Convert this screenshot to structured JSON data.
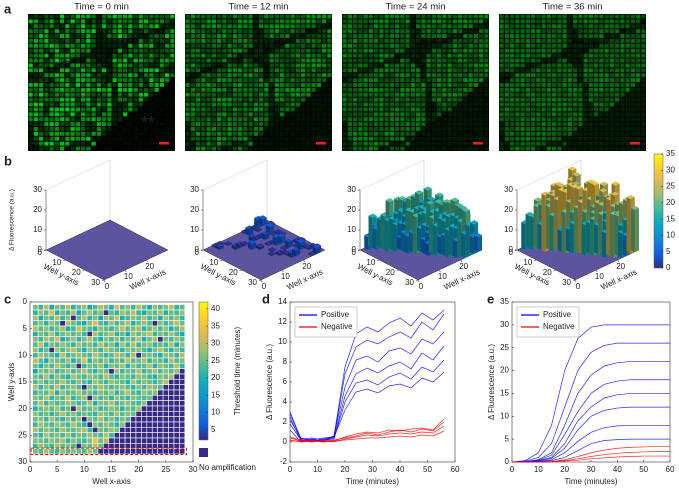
{
  "panel_labels": [
    "a",
    "b",
    "c",
    "d",
    "e"
  ],
  "a": {
    "titles": [
      "Time = 0 min",
      "Time = 12 min",
      "Time = 24 min",
      "Time = 36 min"
    ],
    "annotations": [
      "*",
      "**"
    ]
  },
  "b": {
    "zlabel": "Δ Fluorescence (a.u.)",
    "ylabel": "Well y-axis",
    "xlabel": "Well x-axis",
    "zticks": [
      0,
      10,
      20,
      30
    ],
    "yticks": [
      0,
      10,
      20,
      30
    ],
    "xticks": [
      0,
      10,
      20
    ],
    "colorbar_lim": [
      0,
      35
    ],
    "colorbar_ticks": [
      0,
      5,
      10,
      15,
      20,
      25,
      30,
      35
    ]
  },
  "c": {
    "type": "heatmap",
    "xlabel": "Well x-axis",
    "ylabel": "Well y-axis",
    "xlim": [
      0,
      30
    ],
    "ylim": [
      0,
      30
    ],
    "xticks": [
      0,
      5,
      10,
      15,
      20,
      25,
      30
    ],
    "yticks": [
      0,
      5,
      10,
      15,
      20,
      25,
      30
    ],
    "colorbar_label": "Threshold time (minutes)",
    "colorbar_lim": [
      2,
      42
    ],
    "colorbar_ticks": [
      5,
      10,
      15,
      20,
      25,
      30,
      35,
      40
    ],
    "null_label": "No amplification",
    "values": [
      [
        26,
        22,
        30,
        19,
        27,
        24,
        31,
        21,
        25,
        28,
        18,
        23,
        29,
        26,
        20,
        33,
        24,
        27,
        22,
        30,
        25,
        19,
        28,
        23,
        26,
        31,
        21,
        24
      ],
      [
        21,
        28,
        24,
        33,
        20,
        26,
        22,
        29,
        17,
        25,
        30,
        23,
        27,
        null,
        24,
        21,
        28,
        26,
        31,
        22,
        19,
        27,
        24,
        29,
        20,
        25,
        23,
        28
      ],
      [
        29,
        19,
        26,
        23,
        31,
        22,
        27,
        null,
        24,
        30,
        21,
        26,
        18,
        28,
        25,
        32,
        20,
        23,
        27,
        24,
        29,
        22,
        26,
        19,
        30,
        24,
        27,
        21
      ],
      [
        23,
        27,
        21,
        28,
        24,
        null,
        30,
        25,
        22,
        19,
        27,
        33,
        24,
        21,
        29,
        23,
        26,
        30,
        20,
        25,
        28,
        24,
        null,
        27,
        22,
        26,
        31,
        25
      ],
      [
        30,
        24,
        28,
        22,
        26,
        29,
        19,
        23,
        31,
        26,
        24,
        20,
        28,
        25,
        22,
        27,
        31,
        24,
        26,
        29,
        21,
        25,
        28,
        23,
        27,
        20,
        24,
        29
      ],
      [
        20,
        26,
        23,
        30,
        21,
        25,
        28,
        24,
        27,
        22,
        null,
        29,
        23,
        26,
        30,
        21,
        25,
        19,
        28,
        24,
        27,
        32,
        22,
        26,
        24,
        29,
        23,
        18
      ],
      [
        27,
        22,
        29,
        25,
        33,
        20,
        24,
        28,
        21,
        26,
        30,
        24,
        19,
        27,
        23,
        28,
        22,
        26,
        24,
        31,
        20,
        25,
        29,
        null,
        26,
        22,
        28,
        24
      ],
      [
        24,
        31,
        20,
        27,
        23,
        28,
        25,
        21,
        29,
        24,
        26,
        22,
        31,
        24,
        27,
        19,
        29,
        23,
        30,
        22,
        26,
        28,
        21,
        25,
        23,
        30,
        20,
        27
      ],
      [
        28,
        21,
        25,
        null,
        29,
        23,
        27,
        30,
        24,
        20,
        28,
        25,
        22,
        29,
        26,
        24,
        21,
        27,
        25,
        28,
        23,
        20,
        26,
        30,
        24,
        21,
        27,
        22
      ],
      [
        22,
        29,
        26,
        24,
        20,
        31,
        22,
        26,
        28,
        25,
        23,
        30,
        26,
        21,
        24,
        30,
        27,
        22,
        29,
        null,
        25,
        27,
        23,
        20,
        28,
        26,
        22,
        30
      ],
      [
        31,
        24,
        19,
        28,
        26,
        23,
        29,
        20,
        25,
        33,
        21,
        27,
        24,
        28,
        22,
        26,
        23,
        31,
        24,
        26,
        29,
        22,
        27,
        25,
        21,
        29,
        24,
        26
      ],
      [
        25,
        20,
        27,
        23,
        30,
        26,
        21,
        28,
        null,
        22,
        26,
        24,
        29,
        20,
        27,
        25,
        29,
        20,
        27,
        23,
        24,
        30,
        20,
        28,
        26,
        23,
        30,
        21
      ],
      [
        19,
        27,
        24,
        29,
        22,
        25,
        28,
        23,
        26,
        30,
        24,
        21,
        27,
        25,
        null,
        28,
        22,
        26,
        24,
        30,
        22,
        25,
        29,
        23,
        27,
        24,
        28,
        null
      ],
      [
        26,
        23,
        30,
        21,
        27,
        24,
        20,
        29,
        25,
        22,
        28,
        26,
        23,
        30,
        24,
        21,
        27,
        25,
        22,
        28,
        26,
        23,
        20,
        27,
        25,
        29,
        null,
        null
      ],
      [
        23,
        28,
        22,
        26,
        24,
        30,
        25,
        22,
        27,
        24,
        21,
        29,
        25,
        22,
        28,
        26,
        24,
        20,
        29,
        23,
        27,
        25,
        22,
        26,
        30,
        null,
        null,
        null
      ],
      [
        29,
        21,
        27,
        24,
        31,
        22,
        26,
        28,
        23,
        null,
        27,
        24,
        30,
        26,
        23,
        25,
        28,
        24,
        21,
        27,
        23,
        29,
        26,
        24,
        null,
        null,
        null,
        null
      ],
      [
        22,
        26,
        24,
        30,
        20,
        28,
        23,
        25,
        29,
        24,
        26,
        22,
        27,
        24,
        29,
        21,
        26,
        30,
        24,
        22,
        28,
        25,
        27,
        null,
        null,
        null,
        null,
        null
      ],
      [
        27,
        24,
        29,
        22,
        26,
        23,
        30,
        21,
        25,
        28,
        null,
        27,
        23,
        26,
        21,
        28,
        24,
        22,
        27,
        25,
        23,
        26,
        null,
        null,
        null,
        null,
        null,
        null
      ],
      [
        24,
        30,
        21,
        27,
        23,
        25,
        28,
        26,
        22,
        24,
        29,
        20,
        27,
        25,
        30,
        23,
        26,
        28,
        24,
        22,
        27,
        null,
        null,
        null,
        null,
        null,
        null,
        null
      ],
      [
        20,
        25,
        28,
        24,
        29,
        22,
        26,
        null,
        30,
        23,
        25,
        28,
        22,
        24,
        27,
        25,
        21,
        26,
        23,
        29,
        null,
        null,
        null,
        null,
        null,
        null,
        null,
        null
      ],
      [
        28,
        23,
        26,
        21,
        25,
        30,
        24,
        27,
        22,
        26,
        24,
        21,
        28,
        26,
        23,
        29,
        24,
        27,
        25,
        null,
        null,
        null,
        null,
        null,
        null,
        null,
        null,
        null
      ],
      [
        25,
        27,
        22,
        29,
        24,
        21,
        27,
        23,
        28,
        null,
        26,
        24,
        30,
        23,
        27,
        22,
        26,
        24,
        null,
        null,
        null,
        null,
        null,
        null,
        null,
        null,
        null,
        null
      ],
      [
        22,
        29,
        25,
        23,
        28,
        26,
        22,
        30,
        24,
        21,
        null,
        27,
        24,
        28,
        25,
        21,
        27,
        null,
        null,
        null,
        null,
        null,
        null,
        null,
        null,
        null,
        null,
        null
      ],
      [
        30,
        24,
        27,
        26,
        22,
        29,
        25,
        24,
        27,
        30,
        22,
        null,
        26,
        24,
        28,
        26,
        null,
        null,
        null,
        null,
        null,
        null,
        null,
        null,
        null,
        null,
        null,
        null
      ],
      [
        24,
        21,
        29,
        24,
        27,
        23,
        28,
        22,
        26,
        24,
        28,
        25,
        23,
        30,
        22,
        null,
        null,
        null,
        null,
        null,
        null,
        null,
        null,
        null,
        null,
        null,
        null,
        null
      ],
      [
        27,
        26,
        23,
        28,
        25,
        30,
        21,
        27,
        24,
        22,
        27,
        35,
        26,
        29,
        null,
        null,
        null,
        null,
        null,
        null,
        null,
        null,
        null,
        null,
        null,
        null,
        null,
        null
      ],
      [
        21,
        28,
        25,
        22,
        29,
        24,
        27,
        23,
        null,
        26,
        24,
        30,
        25,
        null,
        null,
        null,
        null,
        null,
        null,
        null,
        null,
        null,
        null,
        null,
        null,
        null,
        null,
        null
      ],
      [
        26,
        23,
        30,
        25,
        22,
        28,
        24,
        27,
        25,
        23,
        29,
        26,
        null,
        null,
        null,
        null,
        null,
        null,
        null,
        null,
        null,
        null,
        null,
        null,
        null,
        null,
        null,
        null
      ]
    ]
  },
  "d": {
    "type": "line",
    "xlabel": "Time (minutes)",
    "ylabel": "Δ Fluorescence (a.u.)",
    "x": [
      0,
      4,
      8,
      12,
      16,
      20,
      24,
      28,
      32,
      36,
      40,
      44,
      48,
      52,
      56
    ],
    "xlim": [
      0,
      60
    ],
    "xticks": [
      0,
      10,
      20,
      30,
      40,
      50,
      60
    ],
    "ylim": [
      -2,
      14
    ],
    "yticks": [
      -2,
      0,
      2,
      4,
      6,
      8,
      10,
      12,
      14
    ],
    "series": [
      {
        "name": "Positive",
        "color": "#0000ff",
        "lines": [
          [
            3.0,
            0.3,
            0.2,
            0.4,
            0.5,
            6.8,
            9.5,
            10.2,
            9.8,
            10.5,
            11.0,
            10.4,
            12.0,
            11.2,
            12.8
          ],
          [
            2.5,
            0.1,
            0.3,
            0.0,
            0.6,
            5.5,
            8.2,
            8.6,
            8.0,
            9.1,
            9.4,
            8.8,
            10.3,
            9.8,
            11.0
          ],
          [
            1.8,
            0.2,
            0.0,
            0.3,
            0.4,
            4.6,
            6.8,
            7.4,
            6.9,
            7.6,
            8.0,
            7.3,
            8.9,
            8.2,
            9.6
          ],
          [
            2.2,
            0.4,
            0.1,
            0.2,
            0.3,
            4.0,
            5.9,
            6.2,
            5.7,
            6.5,
            6.9,
            6.3,
            7.5,
            7.0,
            8.2
          ],
          [
            1.2,
            0.0,
            0.2,
            0.1,
            0.5,
            3.2,
            5.0,
            5.3,
            4.9,
            5.6,
            5.8,
            5.4,
            6.4,
            6.0,
            7.0
          ],
          [
            2.8,
            0.3,
            0.4,
            0.2,
            0.6,
            7.5,
            10.8,
            11.5,
            11.0,
            11.9,
            12.4,
            11.6,
            12.9,
            12.2,
            13.2
          ]
        ]
      },
      {
        "name": "Negative",
        "color": "#ff0000",
        "lines": [
          [
            0.4,
            0.1,
            0.2,
            0.0,
            0.1,
            0.5,
            0.8,
            1.0,
            0.9,
            1.2,
            1.1,
            1.3,
            1.4,
            1.2,
            2.3
          ],
          [
            0.2,
            0.0,
            0.1,
            0.1,
            0.0,
            0.3,
            0.5,
            0.7,
            0.6,
            0.8,
            0.9,
            0.8,
            1.0,
            0.9,
            1.6
          ],
          [
            0.1,
            0.1,
            0.0,
            0.2,
            0.1,
            0.2,
            0.3,
            0.4,
            0.4,
            0.5,
            0.6,
            0.5,
            0.7,
            0.6,
            1.1
          ],
          [
            0.5,
            0.2,
            0.1,
            0.0,
            0.2,
            0.4,
            0.6,
            0.9,
            0.7,
            1.0,
            1.2,
            1.0,
            1.3,
            1.1,
            2.0
          ]
        ]
      }
    ]
  },
  "e": {
    "type": "line",
    "xlabel": "Time (minutes)",
    "ylabel": "Δ Fluorescence (a.u.)",
    "x": [
      0,
      5,
      10,
      15,
      20,
      25,
      30,
      35,
      40,
      45,
      50,
      55,
      60
    ],
    "xlim": [
      0,
      60
    ],
    "xticks": [
      0,
      10,
      20,
      30,
      40,
      50,
      60
    ],
    "ylim": [
      0,
      35
    ],
    "yticks": [
      0,
      5,
      10,
      15,
      20,
      25,
      30,
      35
    ],
    "series": [
      {
        "name": "Positive",
        "color": "#0000ff",
        "lines": [
          [
            0,
            0.3,
            2,
            8,
            20,
            27,
            29.5,
            30,
            30,
            30,
            30,
            30,
            30
          ],
          [
            0,
            0.2,
            1,
            4,
            12,
            20,
            24,
            25.5,
            26,
            26,
            26,
            26,
            26
          ],
          [
            0,
            0.1,
            0.5,
            2,
            8,
            15,
            19,
            21,
            21.7,
            22,
            22,
            22,
            22
          ],
          [
            0,
            0.1,
            0.4,
            1.5,
            6,
            11,
            15,
            17,
            17.7,
            18,
            18,
            18,
            18
          ],
          [
            0,
            0.1,
            0.3,
            1,
            4,
            9,
            12,
            14,
            14.7,
            15,
            15,
            15,
            15
          ],
          [
            0,
            0,
            0.2,
            0.8,
            3,
            7,
            10,
            11.3,
            11.8,
            12,
            12,
            12,
            12
          ],
          [
            0,
            0,
            0.1,
            0.5,
            2,
            4.5,
            6.5,
            7.5,
            7.9,
            8,
            8,
            8,
            8
          ],
          [
            0,
            0,
            0.1,
            0.3,
            1,
            2.5,
            4,
            4.7,
            4.9,
            5,
            5,
            5,
            5
          ]
        ]
      },
      {
        "name": "Negative",
        "color": "#ff0000",
        "lines": [
          [
            0,
            0,
            0,
            0.1,
            0.3,
            0.7,
            1.2,
            1.6,
            1.9,
            2.1,
            2.2,
            2.3,
            2.3
          ],
          [
            0,
            0,
            0,
            0,
            0.2,
            0.4,
            0.7,
            0.9,
            1.1,
            1.2,
            1.3,
            1.3,
            1.3
          ],
          [
            0,
            0,
            0,
            0.1,
            0.5,
            1.2,
            2,
            2.6,
            3,
            3.2,
            3.3,
            3.4,
            3.4
          ]
        ]
      }
    ]
  }
}
